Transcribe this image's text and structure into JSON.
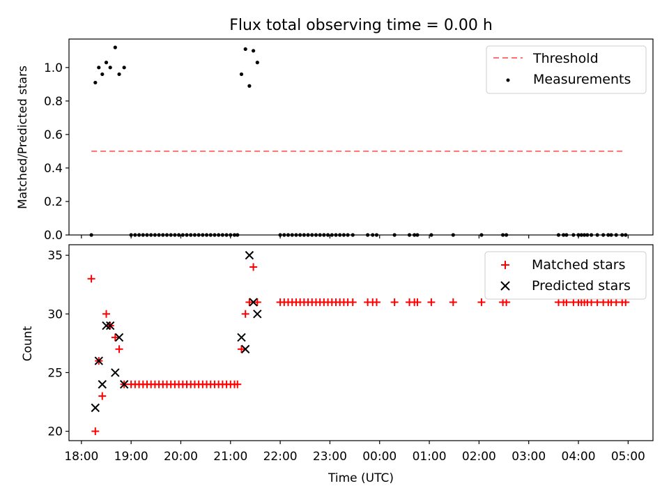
{
  "chart_data": [
    {
      "type": "scatter",
      "title": "Flux total observing time = 0.00 h",
      "xlabel": "",
      "ylabel": "Matched/Predicted stars",
      "ylim": [
        0,
        1.17
      ],
      "yticks": [
        0.0,
        0.2,
        0.4,
        0.6,
        0.8,
        1.0
      ],
      "ytick_labels": [
        "0.0",
        "0.2",
        "0.4",
        "0.6",
        "0.8",
        "1.0"
      ],
      "legend_position": "top-right",
      "legend": [
        "Threshold",
        "Measurements"
      ],
      "threshold": {
        "name": "Threshold",
        "value": 0.5,
        "x_start": 18.2,
        "x_end": 28.95,
        "color": "#ff7070"
      },
      "series": [
        {
          "name": "Measurements",
          "color": "#000000",
          "x": [
            18.2,
            18.28,
            18.35,
            18.42,
            18.5,
            18.58,
            18.68,
            18.76,
            18.86,
            19.0,
            19.08,
            19.16,
            19.24,
            19.32,
            19.4,
            19.48,
            19.56,
            19.64,
            19.72,
            19.8,
            19.88,
            19.96,
            20.04,
            20.12,
            20.2,
            20.28,
            20.36,
            20.44,
            20.52,
            20.6,
            20.68,
            20.76,
            20.84,
            20.92,
            21.0,
            21.08,
            21.14,
            21.22,
            21.3,
            21.38,
            21.46,
            21.54,
            22.0,
            22.08,
            22.16,
            22.24,
            22.32,
            22.4,
            22.48,
            22.56,
            22.64,
            22.72,
            22.8,
            22.88,
            22.96,
            23.04,
            23.12,
            23.2,
            23.28,
            23.36,
            23.46,
            23.76,
            23.86,
            23.94,
            24.3,
            24.6,
            24.7,
            24.76,
            25.04,
            25.48,
            26.05,
            26.48,
            26.55,
            27.6,
            27.7,
            27.76,
            27.9,
            28.0,
            28.06,
            28.12,
            28.18,
            28.26,
            28.38,
            28.5,
            28.6,
            28.66,
            28.76,
            28.88,
            28.95
          ],
          "y": [
            0,
            0.91,
            1.0,
            0.96,
            1.03,
            1.0,
            1.12,
            0.96,
            1.0,
            0,
            0,
            0,
            0,
            0,
            0,
            0,
            0,
            0,
            0,
            0,
            0,
            0,
            0,
            0,
            0,
            0,
            0,
            0,
            0,
            0,
            0,
            0,
            0,
            0,
            0,
            0,
            0,
            0.96,
            1.11,
            0.89,
            1.1,
            1.03,
            0,
            0,
            0,
            0,
            0,
            0,
            0,
            0,
            0,
            0,
            0,
            0,
            0,
            0,
            0,
            0,
            0,
            0,
            0,
            0,
            0,
            0,
            0,
            0,
            0,
            0,
            0,
            0,
            0,
            0,
            0,
            0,
            0,
            0,
            0,
            0,
            0,
            0,
            0,
            0,
            0,
            0,
            0,
            0,
            0,
            0,
            0
          ]
        }
      ]
    },
    {
      "type": "scatter",
      "title": "",
      "xlabel": "Time (UTC)",
      "ylabel": "Count",
      "ylim": [
        19.2,
        35.9
      ],
      "xlim": [
        17.75,
        29.5
      ],
      "yticks": [
        20,
        25,
        30,
        35
      ],
      "ytick_labels": [
        "20",
        "25",
        "30",
        "35"
      ],
      "xticks": [
        18,
        19,
        20,
        21,
        22,
        23,
        24,
        25,
        26,
        27,
        28,
        29
      ],
      "xtick_labels": [
        "18:00",
        "19:00",
        "20:00",
        "21:00",
        "22:00",
        "23:00",
        "00:00",
        "01:00",
        "02:00",
        "03:00",
        "04:00",
        "05:00"
      ],
      "legend_position": "top-right",
      "legend": [
        "Matched stars",
        "Predicted stars"
      ],
      "series": [
        {
          "name": "Matched stars",
          "color": "#ff0000",
          "marker": "plus",
          "x": [
            18.2,
            18.28,
            18.35,
            18.42,
            18.5,
            18.58,
            18.68,
            18.76,
            18.86,
            19.0,
            19.08,
            19.16,
            19.24,
            19.32,
            19.4,
            19.48,
            19.56,
            19.64,
            19.72,
            19.8,
            19.88,
            19.96,
            20.04,
            20.12,
            20.2,
            20.28,
            20.36,
            20.44,
            20.52,
            20.6,
            20.68,
            20.76,
            20.84,
            20.92,
            21.0,
            21.08,
            21.14,
            21.22,
            21.3,
            21.38,
            21.46,
            21.54,
            22.0,
            22.08,
            22.16,
            22.24,
            22.32,
            22.4,
            22.48,
            22.56,
            22.64,
            22.72,
            22.8,
            22.88,
            22.96,
            23.04,
            23.12,
            23.2,
            23.28,
            23.36,
            23.46,
            23.76,
            23.86,
            23.94,
            24.3,
            24.6,
            24.7,
            24.76,
            25.04,
            25.48,
            26.05,
            26.48,
            26.55,
            27.6,
            27.7,
            27.76,
            27.9,
            28.0,
            28.06,
            28.12,
            28.18,
            28.26,
            28.38,
            28.5,
            28.6,
            28.66,
            28.76,
            28.88,
            28.95
          ],
          "y": [
            33,
            20,
            26,
            23,
            30,
            29,
            28,
            27,
            24,
            24,
            24,
            24,
            24,
            24,
            24,
            24,
            24,
            24,
            24,
            24,
            24,
            24,
            24,
            24,
            24,
            24,
            24,
            24,
            24,
            24,
            24,
            24,
            24,
            24,
            24,
            24,
            24,
            27,
            30,
            31,
            34,
            31,
            31,
            31,
            31,
            31,
            31,
            31,
            31,
            31,
            31,
            31,
            31,
            31,
            31,
            31,
            31,
            31,
            31,
            31,
            31,
            31,
            31,
            31,
            31,
            31,
            31,
            31,
            31,
            31,
            31,
            31,
            31,
            31,
            31,
            31,
            31,
            31,
            31,
            31,
            31,
            31,
            31,
            31,
            31,
            31,
            31,
            31,
            31
          ]
        },
        {
          "name": "Predicted stars",
          "color": "#000000",
          "marker": "x",
          "x": [
            18.28,
            18.35,
            18.42,
            18.5,
            18.58,
            18.68,
            18.76,
            18.86,
            21.22,
            21.3,
            21.38,
            21.46,
            21.54
          ],
          "y": [
            22,
            26,
            24,
            29,
            29,
            25,
            28,
            24,
            28,
            27,
            35,
            31,
            30
          ]
        }
      ]
    }
  ]
}
